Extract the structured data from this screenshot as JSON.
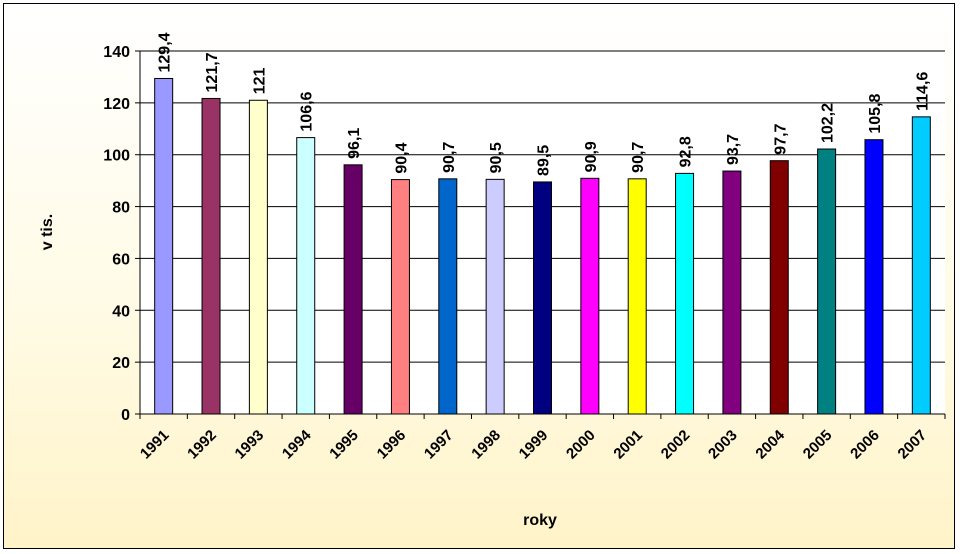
{
  "chart_data": {
    "type": "bar",
    "title": "",
    "xlabel": "roky",
    "ylabel": "v tis.",
    "categories": [
      "1991",
      "1992",
      "1993",
      "1994",
      "1995",
      "1996",
      "1997",
      "1998",
      "1999",
      "2000",
      "2001",
      "2002",
      "2003",
      "2004",
      "2005",
      "2006",
      "2007"
    ],
    "values": [
      129.4,
      121.7,
      121,
      106.6,
      96.1,
      90.4,
      90.7,
      90.5,
      89.5,
      90.9,
      90.7,
      92.8,
      93.7,
      97.7,
      102.2,
      105.8,
      114.6
    ],
    "value_labels": [
      "129,4",
      "121,7",
      "121",
      "106,6",
      "96,1",
      "90,4",
      "90,7",
      "90,5",
      "89,5",
      "90,9",
      "90,7",
      "92,8",
      "93,7",
      "97,7",
      "102,2",
      "105,8",
      "114,6"
    ],
    "colors": [
      "#9999ff",
      "#993366",
      "#ffffcc",
      "#ccffff",
      "#660066",
      "#ff8080",
      "#0066cc",
      "#ccccff",
      "#000080",
      "#ff00ff",
      "#ffff00",
      "#00ffff",
      "#800080",
      "#800000",
      "#008080",
      "#0000ff",
      "#00ccff"
    ],
    "y_ticks": [
      "0",
      "20",
      "40",
      "60",
      "80",
      "100",
      "120",
      "140"
    ],
    "ylim": [
      0,
      140
    ],
    "grid": true,
    "legend": "none"
  }
}
